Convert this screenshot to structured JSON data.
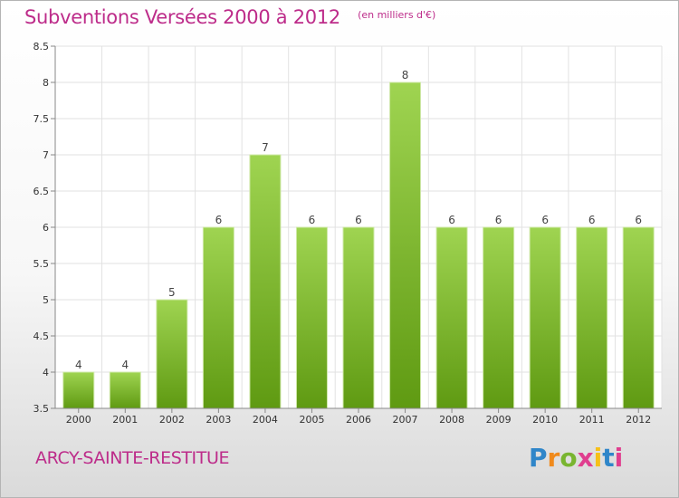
{
  "header": {
    "title": "Subventions Versées 2000 à 2012",
    "subtitle": "(en milliers d'€)"
  },
  "footer": {
    "commune": "ARCY-SAINTE-RESTITUE",
    "logo_text": "Proxiti"
  },
  "colors": {
    "accent": "#bd2c8a",
    "bar_top": "#9fd451",
    "bar_bottom": "#5f9a12"
  },
  "chart_data": {
    "type": "bar",
    "categories": [
      "2000",
      "2001",
      "2002",
      "2003",
      "2004",
      "2005",
      "2006",
      "2007",
      "2008",
      "2009",
      "2010",
      "2011",
      "2012"
    ],
    "values": [
      4,
      4,
      5,
      6,
      7,
      6,
      6,
      8,
      6,
      6,
      6,
      6,
      6
    ],
    "value_labels": [
      "4",
      "4",
      "5",
      "6",
      "7",
      "6",
      "6",
      "8",
      "6",
      "6",
      "6",
      "6",
      "6"
    ],
    "yticks": [
      "3.5",
      "4",
      "4.5",
      "5",
      "5.5",
      "6",
      "6.5",
      "7",
      "7.5",
      "8",
      "8.5"
    ],
    "title": "Subventions Versées 2000 à 2012",
    "xlabel": "",
    "ylabel": "",
    "ylim": [
      3.5,
      8.5
    ],
    "grid": true,
    "legend": "none"
  }
}
